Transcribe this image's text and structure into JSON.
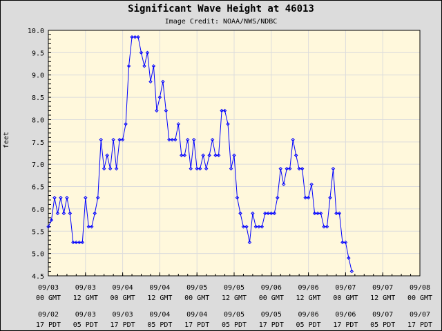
{
  "chart_data": {
    "type": "line",
    "title": "Significant Wave Height at 46013",
    "subtitle": "Image Credit: NOAA/NWS/NDBC",
    "xlabel": "",
    "ylabel": "feet",
    "ylim": [
      4.5,
      10.0
    ],
    "y_ticks": [
      "10.0",
      "9.5",
      "9.0",
      "8.5",
      "8.0",
      "7.5",
      "7.0",
      "6.5",
      "6.0",
      "5.5",
      "5.0",
      "4.5"
    ],
    "x_ticks_gmt": [
      [
        "09/03",
        "00 GMT"
      ],
      [
        "09/03",
        "12 GMT"
      ],
      [
        "09/04",
        "00 GMT"
      ],
      [
        "09/04",
        "12 GMT"
      ],
      [
        "09/05",
        "00 GMT"
      ],
      [
        "09/05",
        "12 GMT"
      ],
      [
        "09/06",
        "00 GMT"
      ],
      [
        "09/06",
        "12 GMT"
      ],
      [
        "09/07",
        "00 GMT"
      ],
      [
        "09/07",
        "12 GMT"
      ],
      [
        "09/08",
        "00 GMT"
      ]
    ],
    "x_ticks_pdt": [
      [
        "09/02",
        "17 PDT"
      ],
      [
        "09/03",
        "05 PDT"
      ],
      [
        "09/03",
        "17 PDT"
      ],
      [
        "09/04",
        "05 PDT"
      ],
      [
        "09/04",
        "17 PDT"
      ],
      [
        "09/05",
        "05 PDT"
      ],
      [
        "09/05",
        "17 PDT"
      ],
      [
        "09/06",
        "05 PDT"
      ],
      [
        "09/06",
        "17 PDT"
      ],
      [
        "09/07",
        "05 PDT"
      ],
      [
        "09/07",
        "17 PDT"
      ]
    ],
    "x_range_hours": [
      0,
      120
    ],
    "x_start": "09/03 00 GMT",
    "x_step_hours": 1,
    "grid": true,
    "series": [
      {
        "name": "Significant Wave Height",
        "color": "#0000ff",
        "values": [
          5.6,
          5.75,
          6.25,
          5.9,
          6.25,
          5.9,
          6.25,
          5.9,
          5.25,
          5.25,
          5.25,
          5.25,
          6.25,
          5.6,
          5.6,
          5.9,
          6.25,
          7.55,
          6.9,
          7.2,
          6.9,
          7.55,
          6.9,
          7.55,
          7.55,
          7.9,
          9.2,
          9.85,
          9.85,
          9.85,
          9.5,
          9.2,
          9.5,
          8.85,
          9.2,
          8.2,
          8.5,
          8.85,
          8.2,
          7.55,
          7.55,
          7.55,
          7.9,
          7.2,
          7.2,
          7.55,
          6.9,
          7.55,
          6.9,
          6.9,
          7.2,
          6.9,
          7.2,
          7.55,
          7.2,
          7.2,
          8.2,
          8.2,
          7.9,
          6.9,
          7.2,
          6.25,
          5.9,
          5.6,
          5.6,
          5.25,
          5.9,
          5.6,
          5.6,
          5.6,
          5.9,
          5.9,
          5.9,
          5.9,
          6.25,
          6.9,
          6.55,
          6.9,
          6.9,
          7.55,
          7.2,
          6.9,
          6.9,
          6.25,
          6.25,
          6.55,
          5.9,
          5.9,
          5.9,
          5.6,
          5.6,
          6.25,
          6.9,
          5.9,
          5.9,
          5.25,
          5.25,
          4.9,
          4.6
        ]
      }
    ]
  },
  "colors": {
    "background": "#dcdcdc",
    "plot_background": "#fff8dc",
    "grid": "#dcdcdc",
    "line": "#0000ff"
  }
}
